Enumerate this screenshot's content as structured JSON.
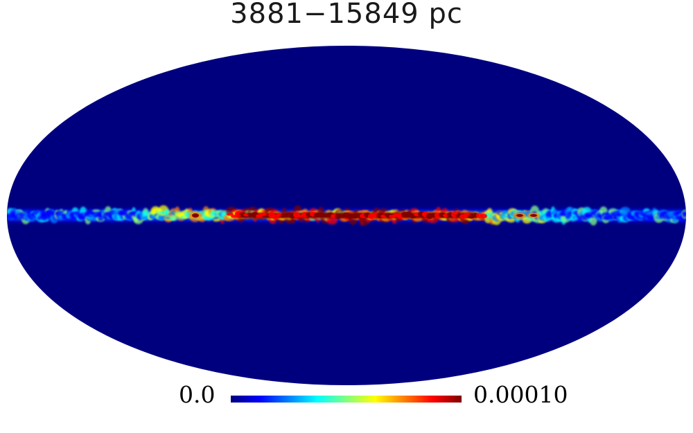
{
  "title": "3881−15849  pc",
  "projection": "mollweide",
  "colormap": [
    "#00007f",
    "#0000ff",
    "#0080ff",
    "#00ffff",
    "#80ff80",
    "#ffff00",
    "#ff8000",
    "#ff0000",
    "#7f0000"
  ],
  "background_color": "#00007f",
  "colorbar": {
    "min_label": "0.0",
    "max_label": "0.00010",
    "min": 0.0,
    "max": 0.0001
  },
  "features": [
    {
      "name": "galactic-plane-band",
      "description": "bright emission along the equator, saturated red near the center"
    }
  ]
}
